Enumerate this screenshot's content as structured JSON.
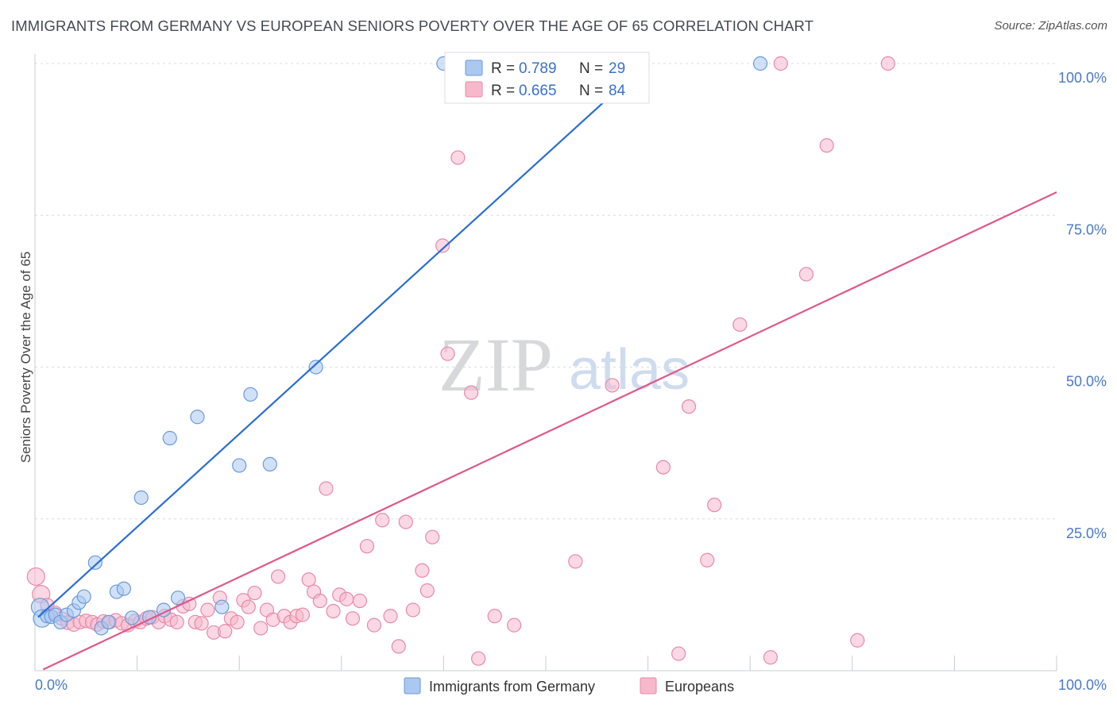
{
  "title": "IMMIGRANTS FROM GERMANY VS EUROPEAN SENIORS POVERTY OVER THE AGE OF 65 CORRELATION CHART",
  "source": "Source: ZipAtlas.com",
  "watermark": {
    "zip": "ZIP",
    "atlas": "atlas"
  },
  "colors": {
    "blue_fill": "#aac8f0",
    "blue_stroke": "#6a9ad8",
    "blue_line": "#2a6fd0",
    "pink_fill": "#f7b8cc",
    "pink_stroke": "#e68aa8",
    "pink_line": "#e0578a",
    "grid": "#d8dce2",
    "axis": "#c8ccd2",
    "tick_text": "#4a78c8"
  },
  "legend": {
    "r_label": "R =",
    "n_label": "N =",
    "rows": [
      {
        "r": "0.789",
        "n": "29"
      },
      {
        "r": "0.665",
        "n": "84"
      }
    ]
  },
  "chart_data": {
    "type": "scatter",
    "ylabel": "Seniors Poverty Over the Age of 65",
    "xlabel": "",
    "xlim": [
      0,
      100
    ],
    "ylim": [
      0,
      100
    ],
    "x_tick_labels": [
      "0.0%",
      "100.0%"
    ],
    "y_tick_labels": [
      "25.0%",
      "50.0%",
      "75.0%",
      "100.0%"
    ],
    "y_ticks": [
      25,
      50,
      75,
      100
    ],
    "series": [
      {
        "name": "Immigrants from Germany",
        "color": "#aac8f0",
        "trend": {
          "x": [
            0.3,
            59.3
          ],
          "y": [
            8.8,
            99.2
          ]
        },
        "points": [
          [
            0.5,
            10.5
          ],
          [
            0.7,
            8.6
          ],
          [
            1.2,
            9.0
          ],
          [
            1.6,
            8.9
          ],
          [
            2.0,
            9.2
          ],
          [
            2.5,
            8.0
          ],
          [
            3.1,
            9.2
          ],
          [
            3.8,
            9.9
          ],
          [
            4.3,
            11.2
          ],
          [
            4.8,
            12.2
          ],
          [
            5.9,
            17.8
          ],
          [
            6.5,
            7.0
          ],
          [
            7.2,
            8.0
          ],
          [
            8.0,
            13.0
          ],
          [
            8.7,
            13.5
          ],
          [
            9.5,
            8.7
          ],
          [
            10.4,
            28.5
          ],
          [
            11.2,
            8.8
          ],
          [
            12.6,
            10.0
          ],
          [
            13.2,
            38.3
          ],
          [
            14.0,
            12.0
          ],
          [
            15.9,
            41.8
          ],
          [
            18.3,
            10.5
          ],
          [
            20.0,
            33.8
          ],
          [
            21.1,
            45.5
          ],
          [
            23.0,
            34.0
          ],
          [
            27.5,
            50.0
          ],
          [
            40.0,
            100.0
          ],
          [
            71.0,
            100.0
          ]
        ]
      },
      {
        "name": "Europeans",
        "color": "#f7b8cc",
        "trend": {
          "x": [
            0.8,
            100
          ],
          "y": [
            0.2,
            78.8
          ]
        },
        "points": [
          [
            0.1,
            15.5
          ],
          [
            0.6,
            12.6
          ],
          [
            1.2,
            10.8
          ],
          [
            2.0,
            9.5
          ],
          [
            2.6,
            8.6
          ],
          [
            3.2,
            7.9
          ],
          [
            3.8,
            7.6
          ],
          [
            4.4,
            8.0
          ],
          [
            5.0,
            8.2
          ],
          [
            5.6,
            8.0
          ],
          [
            6.1,
            7.6
          ],
          [
            6.7,
            8.1
          ],
          [
            7.3,
            8.0
          ],
          [
            7.9,
            8.3
          ],
          [
            8.5,
            7.8
          ],
          [
            9.1,
            7.5
          ],
          [
            9.8,
            8.2
          ],
          [
            10.3,
            8.0
          ],
          [
            10.9,
            8.6
          ],
          [
            11.5,
            8.8
          ],
          [
            12.1,
            8.0
          ],
          [
            12.7,
            9.0
          ],
          [
            13.3,
            8.4
          ],
          [
            13.9,
            8.0
          ],
          [
            14.5,
            10.6
          ],
          [
            15.1,
            11.0
          ],
          [
            15.7,
            8.0
          ],
          [
            16.3,
            7.8
          ],
          [
            16.9,
            10.0
          ],
          [
            17.5,
            6.3
          ],
          [
            18.1,
            12.0
          ],
          [
            18.6,
            6.5
          ],
          [
            19.2,
            8.6
          ],
          [
            19.8,
            8.0
          ],
          [
            20.4,
            11.6
          ],
          [
            20.9,
            10.5
          ],
          [
            21.5,
            12.8
          ],
          [
            22.1,
            7.0
          ],
          [
            22.7,
            10.0
          ],
          [
            23.3,
            8.4
          ],
          [
            23.8,
            15.5
          ],
          [
            24.4,
            9.0
          ],
          [
            25.0,
            8.0
          ],
          [
            25.6,
            9.0
          ],
          [
            26.2,
            9.2
          ],
          [
            26.8,
            15.0
          ],
          [
            27.3,
            13.0
          ],
          [
            27.9,
            11.5
          ],
          [
            28.5,
            30.0
          ],
          [
            29.2,
            9.8
          ],
          [
            29.8,
            12.5
          ],
          [
            30.5,
            11.8
          ],
          [
            31.1,
            8.6
          ],
          [
            31.8,
            11.5
          ],
          [
            32.5,
            20.5
          ],
          [
            33.2,
            7.5
          ],
          [
            34.0,
            24.8
          ],
          [
            34.8,
            9.0
          ],
          [
            35.6,
            4.0
          ],
          [
            36.3,
            24.5
          ],
          [
            37.0,
            10.0
          ],
          [
            37.9,
            16.5
          ],
          [
            38.4,
            13.2
          ],
          [
            38.9,
            22.0
          ],
          [
            39.9,
            70.0
          ],
          [
            40.4,
            52.2
          ],
          [
            41.4,
            84.5
          ],
          [
            42.7,
            45.8
          ],
          [
            43.4,
            2.0
          ],
          [
            45.0,
            9.0
          ],
          [
            46.9,
            7.5
          ],
          [
            52.9,
            18.0
          ],
          [
            56.5,
            47.0
          ],
          [
            61.5,
            33.5
          ],
          [
            63.0,
            2.8
          ],
          [
            64.0,
            43.5
          ],
          [
            65.8,
            18.2
          ],
          [
            66.5,
            27.3
          ],
          [
            69.0,
            57.0
          ],
          [
            72.0,
            2.2
          ],
          [
            73.0,
            100.0
          ],
          [
            75.5,
            65.3
          ],
          [
            77.5,
            86.5
          ],
          [
            80.5,
            5.0
          ],
          [
            83.5,
            100.0
          ]
        ]
      }
    ]
  },
  "bottom_legend": [
    {
      "label": "Immigrants from Germany"
    },
    {
      "label": "Europeans"
    }
  ]
}
